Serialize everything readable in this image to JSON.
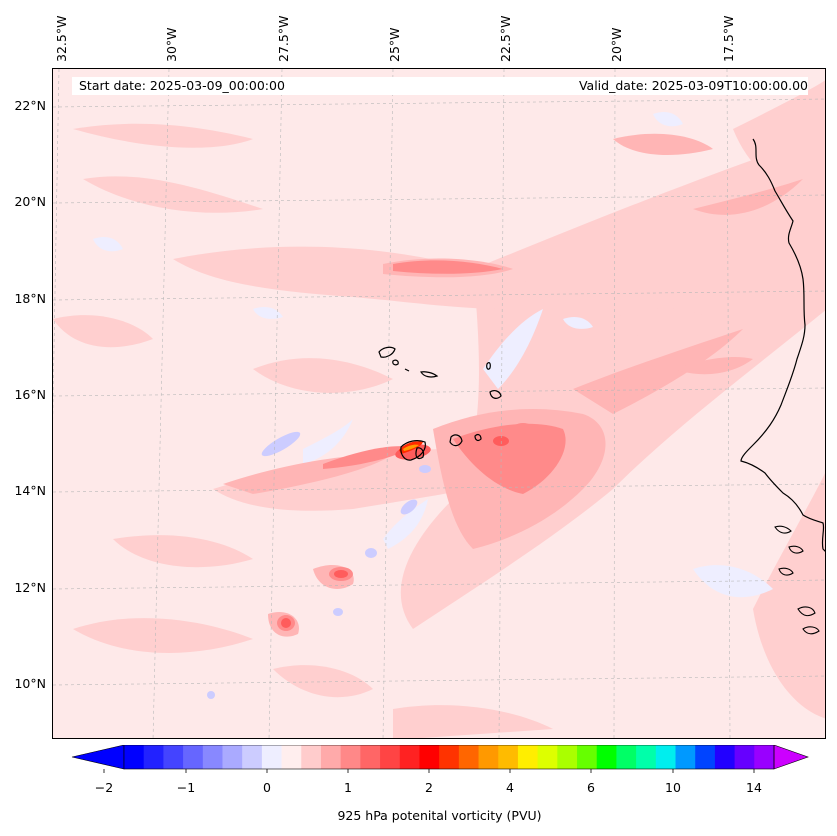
{
  "map": {
    "title_left": "Start date: 2025-03-09_00:00:00",
    "title_right": "Valid_date: 2025-03-09T10:00:00.00",
    "longitude_labels": [
      "32.5°W",
      "30°W",
      "27.5°W",
      "25°W",
      "22.5°W",
      "20°W",
      "17.5°W"
    ],
    "latitude_labels": [
      "22°N",
      "20°N",
      "18°N",
      "16°N",
      "14°N",
      "12°N",
      "10°N"
    ],
    "extent": {
      "lon_min": -32.7,
      "lon_max": -15.2,
      "lat_min": 8.9,
      "lat_max": 22.8
    },
    "gridlines": true,
    "features": [
      "Cabo Verde islands",
      "West African coastline"
    ]
  },
  "colorbar": {
    "label": "925 hPa potenital vorticity (PVU)",
    "tick_labels": [
      "−2",
      "−1",
      "0",
      "1",
      "2",
      "4",
      "6",
      "10",
      "14"
    ],
    "extend": "both",
    "colors": [
      "#0000ff",
      "#2222ff",
      "#4444ff",
      "#6666ff",
      "#8888ff",
      "#aaaaff",
      "#ccccff",
      "#eeeeff",
      "#ffeeee",
      "#ffcccc",
      "#ffaaaa",
      "#ff8888",
      "#ff6666",
      "#ff4444",
      "#ff2222",
      "#ff0000",
      "#ff3300",
      "#ff6600",
      "#ff9900",
      "#ffbb00",
      "#ffee00",
      "#ddff00",
      "#aaff00",
      "#66ff00",
      "#00ff00",
      "#00ff66",
      "#00ffaa",
      "#00eeee",
      "#0099ff",
      "#0044ff",
      "#2200ff",
      "#6600ff",
      "#9900ff"
    ],
    "under_color": "#0000ff",
    "over_color": "#cc00ff"
  }
}
